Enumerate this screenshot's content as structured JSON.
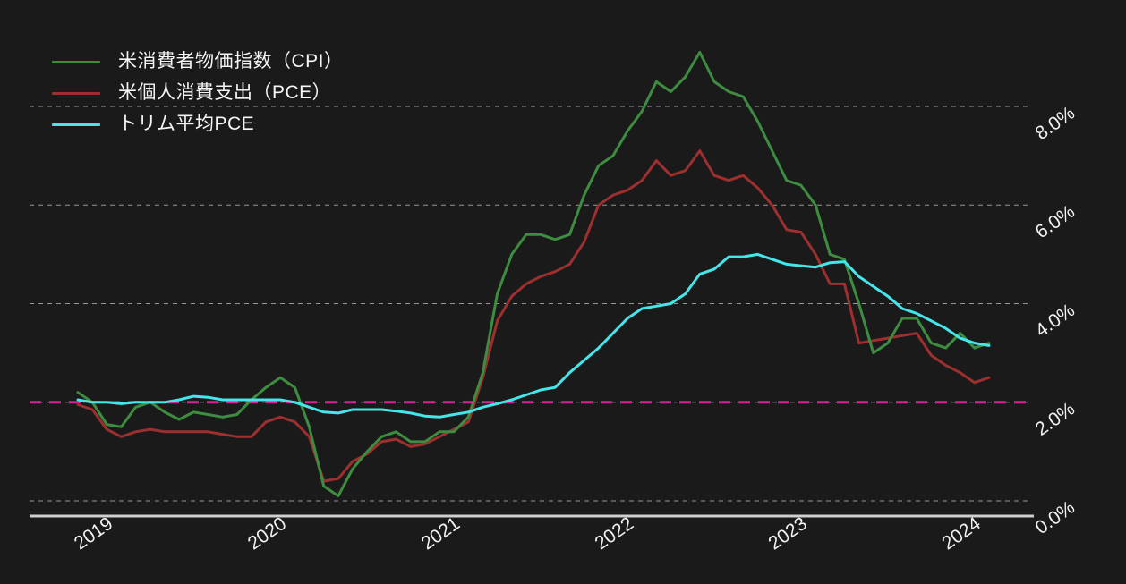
{
  "chart": {
    "background": "#1a1a1b",
    "grid_color": "rgba(255,255,255,0.55)",
    "axis_line_color": "#cfcfcf",
    "tick_text_color": "#f2f2f2",
    "legend_position": "top-left"
  },
  "chart_data": {
    "type": "line",
    "title": "",
    "xlabel": "",
    "ylabel": "",
    "x": [
      "2018-11",
      "2018-12",
      "2019-01",
      "2019-02",
      "2019-03",
      "2019-04",
      "2019-05",
      "2019-06",
      "2019-07",
      "2019-08",
      "2019-09",
      "2019-10",
      "2019-11",
      "2019-12",
      "2020-01",
      "2020-02",
      "2020-03",
      "2020-04",
      "2020-05",
      "2020-06",
      "2020-07",
      "2020-08",
      "2020-09",
      "2020-10",
      "2020-11",
      "2020-12",
      "2021-01",
      "2021-02",
      "2021-03",
      "2021-04",
      "2021-05",
      "2021-06",
      "2021-07",
      "2021-08",
      "2021-09",
      "2021-10",
      "2021-11",
      "2021-12",
      "2022-01",
      "2022-02",
      "2022-03",
      "2022-04",
      "2022-05",
      "2022-06",
      "2022-07",
      "2022-08",
      "2022-09",
      "2022-10",
      "2022-11",
      "2022-12",
      "2023-01",
      "2023-02",
      "2023-03",
      "2023-04",
      "2023-05",
      "2023-06",
      "2023-07",
      "2023-08",
      "2023-09",
      "2023-10",
      "2023-11",
      "2023-12",
      "2024-01",
      "2024-02"
    ],
    "series": [
      {
        "id": "cpi",
        "name": "米消費者物価指数（CPI）",
        "color": "#3d8c40",
        "values": [
          2.2,
          2.0,
          1.55,
          1.5,
          1.9,
          2.0,
          1.8,
          1.65,
          1.8,
          1.75,
          1.7,
          1.75,
          2.05,
          2.3,
          2.5,
          2.3,
          1.5,
          0.3,
          0.1,
          0.65,
          1.0,
          1.3,
          1.4,
          1.2,
          1.2,
          1.4,
          1.4,
          1.7,
          2.6,
          4.2,
          5.0,
          5.4,
          5.4,
          5.3,
          5.4,
          6.2,
          6.8,
          7.0,
          7.5,
          7.9,
          8.5,
          8.3,
          8.6,
          9.1,
          8.5,
          8.3,
          8.2,
          7.7,
          7.1,
          6.5,
          6.4,
          6.0,
          5.0,
          4.9,
          4.0,
          3.0,
          3.2,
          3.7,
          3.7,
          3.2,
          3.1,
          3.4,
          3.1,
          3.2
        ]
      },
      {
        "id": "pce",
        "name": "米個人消費支出（PCE）",
        "color": "#9e2f2f",
        "values": [
          1.95,
          1.85,
          1.45,
          1.3,
          1.4,
          1.45,
          1.4,
          1.4,
          1.4,
          1.4,
          1.35,
          1.3,
          1.3,
          1.6,
          1.7,
          1.6,
          1.3,
          0.4,
          0.45,
          0.8,
          0.95,
          1.2,
          1.25,
          1.1,
          1.15,
          1.3,
          1.45,
          1.6,
          2.5,
          3.65,
          4.15,
          4.4,
          4.55,
          4.65,
          4.8,
          5.25,
          6.0,
          6.2,
          6.3,
          6.5,
          6.9,
          6.6,
          6.7,
          7.1,
          6.6,
          6.5,
          6.6,
          6.35,
          6.0,
          5.5,
          5.45,
          5.0,
          4.4,
          4.4,
          3.2,
          3.25,
          3.3,
          3.35,
          3.4,
          2.95,
          2.75,
          2.6,
          2.4,
          2.5
        ]
      },
      {
        "id": "trimmed-pce",
        "name": "トリム平均PCE",
        "color": "#45e6ea",
        "values": [
          2.05,
          2.0,
          2.0,
          1.97,
          2.0,
          2.0,
          2.0,
          2.05,
          2.12,
          2.1,
          2.05,
          2.05,
          2.05,
          2.05,
          2.05,
          2.0,
          1.9,
          1.8,
          1.78,
          1.85,
          1.85,
          1.85,
          1.82,
          1.78,
          1.72,
          1.7,
          1.75,
          1.8,
          1.9,
          1.97,
          2.05,
          2.15,
          2.25,
          2.3,
          2.6,
          2.85,
          3.1,
          3.4,
          3.7,
          3.9,
          3.95,
          4.0,
          4.2,
          4.6,
          4.7,
          4.95,
          4.95,
          5.0,
          4.9,
          4.8,
          4.77,
          4.74,
          4.83,
          4.85,
          4.55,
          4.35,
          4.15,
          3.9,
          3.8,
          3.65,
          3.5,
          3.3,
          3.2,
          3.15
        ]
      }
    ],
    "y_axis": {
      "side": "right",
      "range": [
        0,
        9.6
      ],
      "grid": true,
      "ticks": [
        {
          "label": "0.0%",
          "value": 0.0
        },
        {
          "label": "2.0%",
          "value": 2.0
        },
        {
          "label": "4.0%",
          "value": 4.0
        },
        {
          "label": "6.0%",
          "value": 6.0
        },
        {
          "label": "8.0%",
          "value": 8.0
        }
      ]
    },
    "x_axis": {
      "ticks": [
        {
          "label": "2019",
          "month": "2019-01"
        },
        {
          "label": "2020",
          "month": "2020-01"
        },
        {
          "label": "2021",
          "month": "2021-01"
        },
        {
          "label": "2022",
          "month": "2022-01"
        },
        {
          "label": "2023",
          "month": "2023-01"
        },
        {
          "label": "2024",
          "month": "2024-01"
        }
      ]
    },
    "reference_line": {
      "value": 2.0,
      "color": "#d91f9e",
      "style": "dashed"
    }
  }
}
